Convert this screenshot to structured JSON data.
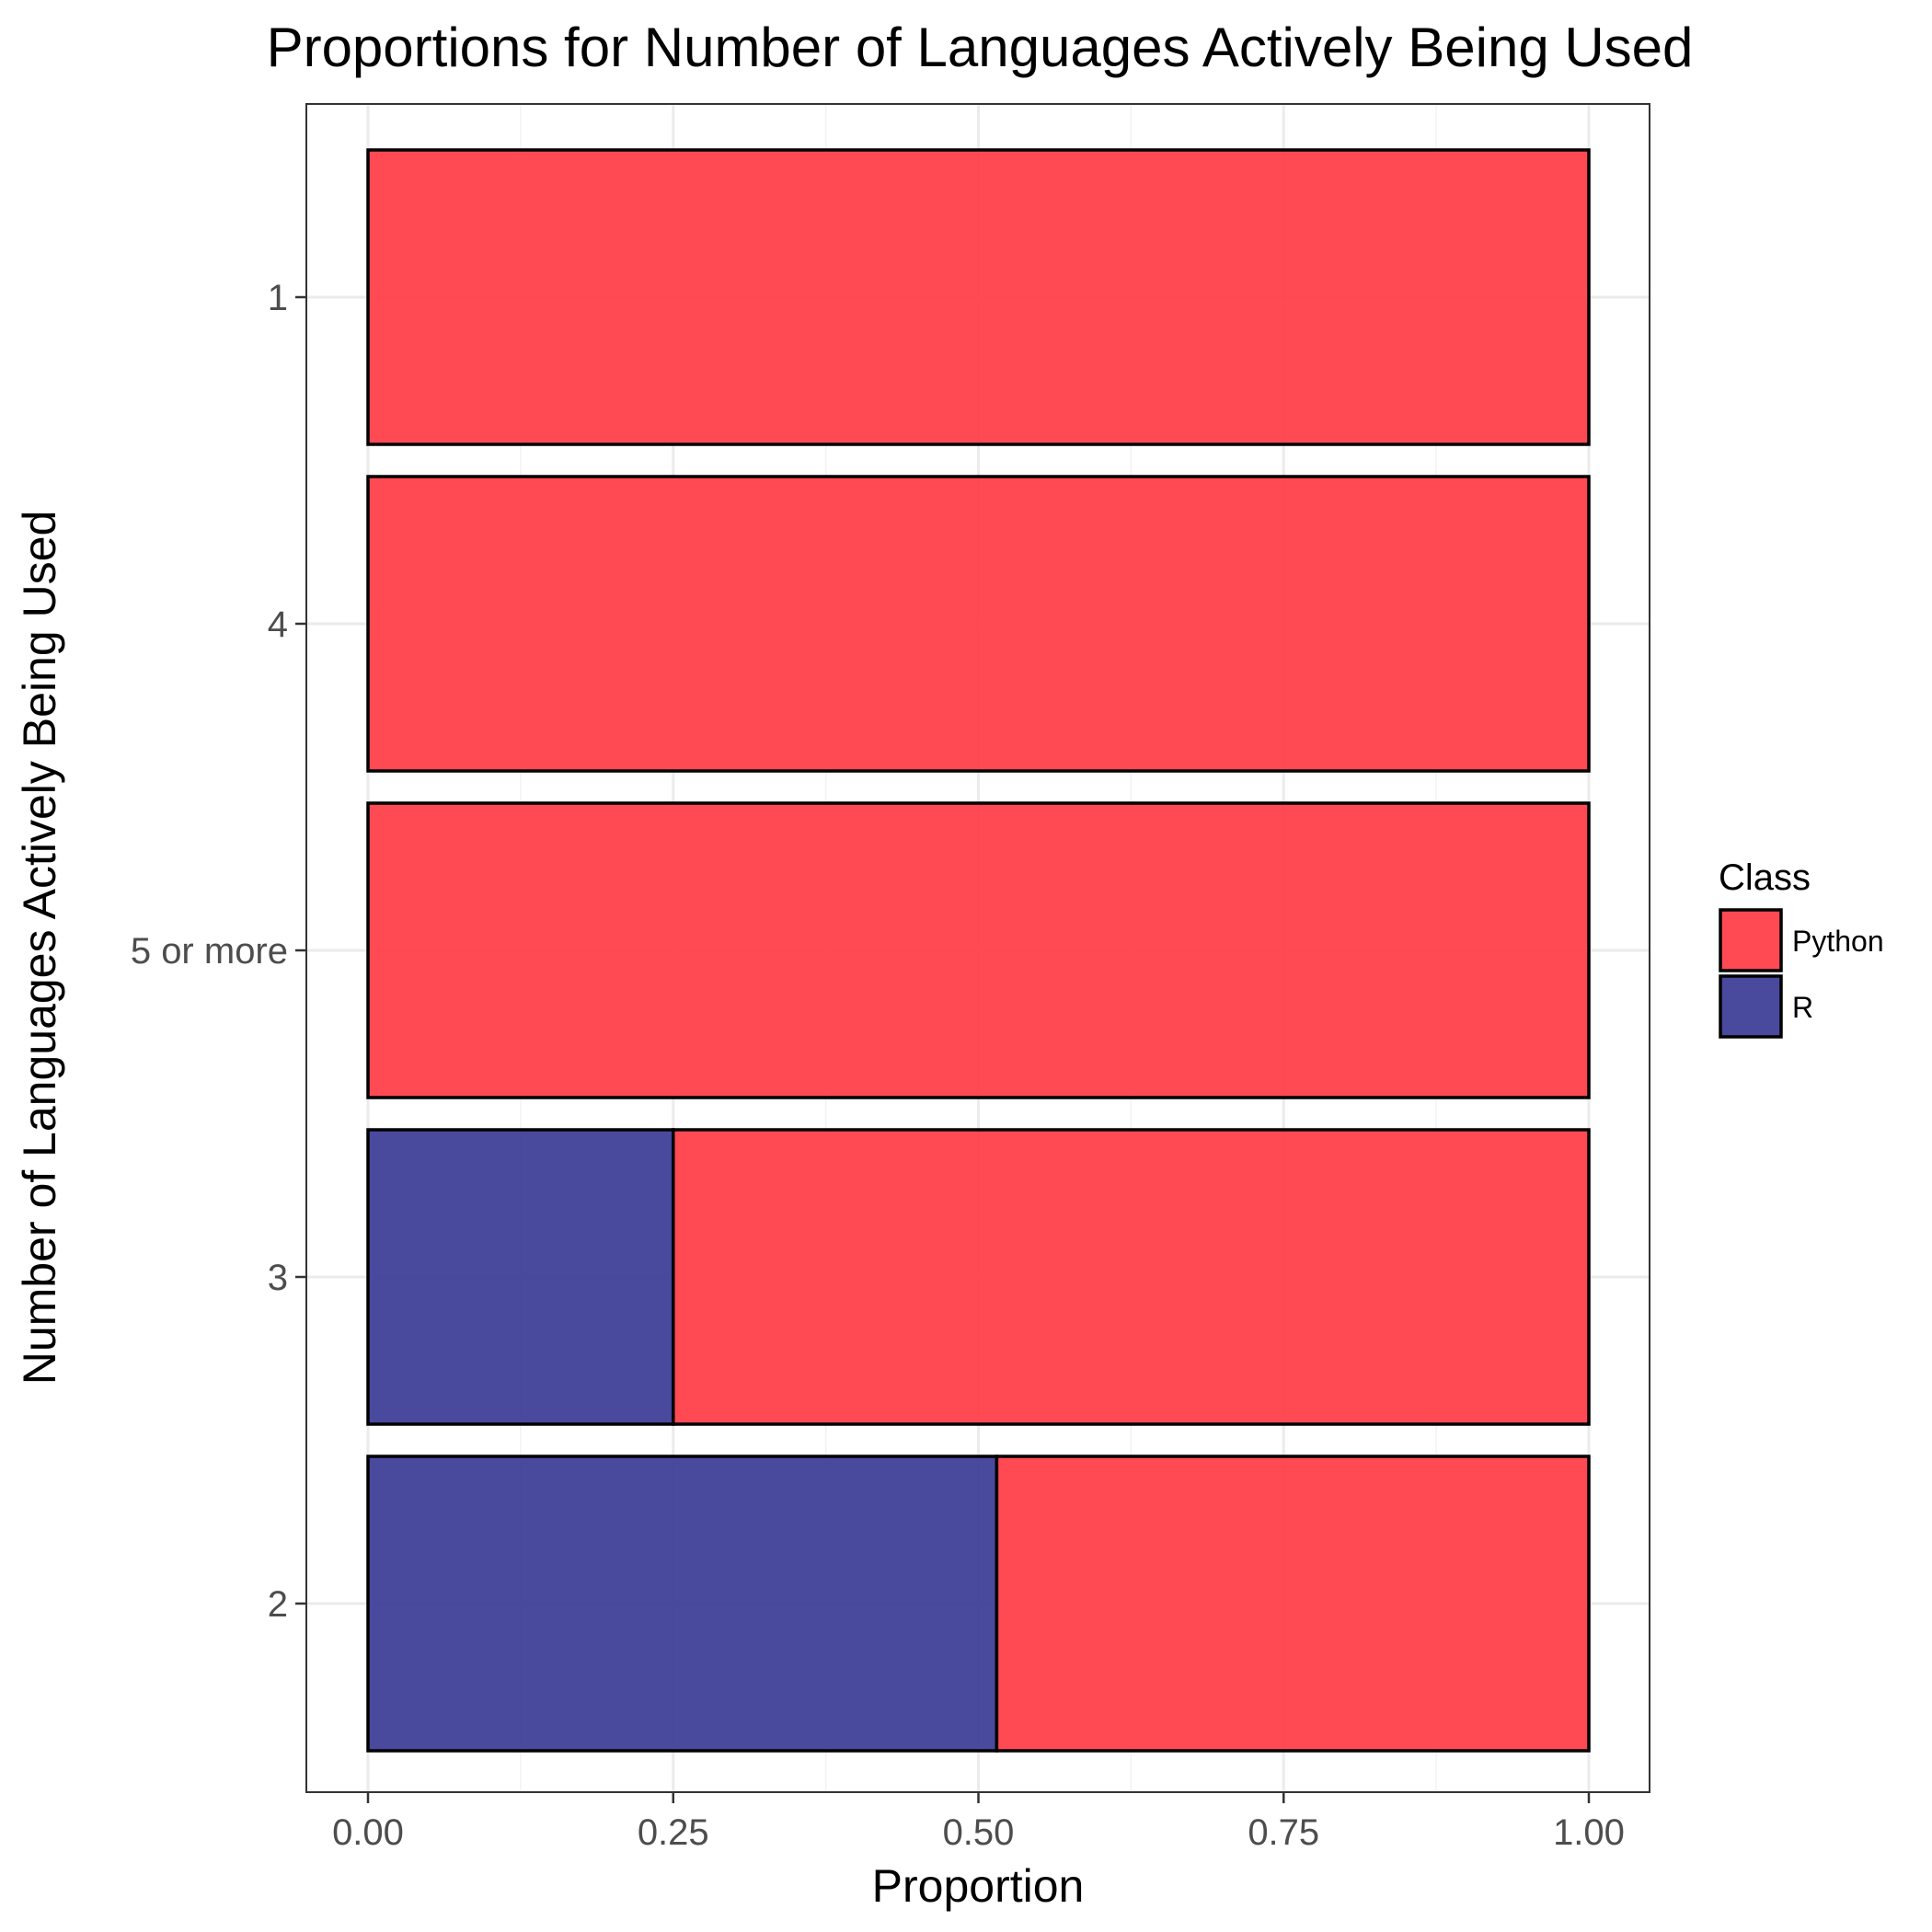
{
  "chart_data": {
    "type": "bar",
    "orientation": "horizontal",
    "stacked": true,
    "title": "Proportions for Number of Languages Actively Being Used",
    "xlabel": "Proportion",
    "ylabel": "Number of Languages Actively Being Used",
    "xlim": [
      0,
      1
    ],
    "x_ticks": [
      "0.00",
      "0.25",
      "0.50",
      "0.75",
      "1.00"
    ],
    "x_tick_values": [
      0,
      0.25,
      0.5,
      0.75,
      1.0
    ],
    "categories": [
      "1",
      "4",
      "5 or more",
      "3",
      "2"
    ],
    "series": [
      {
        "name": "R",
        "color": "#3a3a96",
        "values": [
          0,
          0,
          0,
          0.25,
          0.515
        ]
      },
      {
        "name": "Python",
        "color": "#ff3b44",
        "values": [
          1,
          1,
          1,
          0.75,
          0.485
        ]
      }
    ],
    "legend": {
      "title": "Class",
      "position": "right",
      "entries": [
        {
          "label": "Python",
          "color": "#ff3b44"
        },
        {
          "label": "R",
          "color": "#3a3a96"
        }
      ]
    },
    "grid": true
  }
}
